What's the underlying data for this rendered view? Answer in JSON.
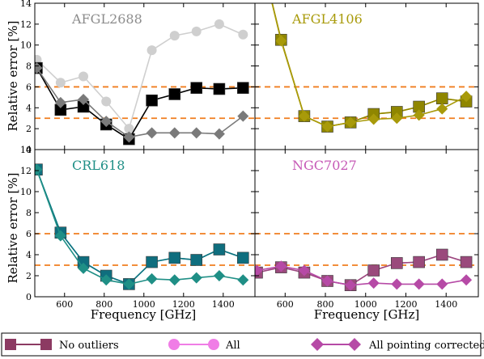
{
  "chart_data": {
    "type": "line",
    "xlabel": "Frequency [GHz]",
    "ylabel": "Relative error [%]",
    "xlim": [
      450,
      1560
    ],
    "ylim": [
      0,
      14
    ],
    "xticks": [
      600,
      800,
      1000,
      1200,
      1400
    ],
    "yticks": [
      0,
      2,
      4,
      6,
      8,
      10,
      12,
      14
    ],
    "hlines": [
      3,
      6
    ],
    "hline_color": "#f07d1e",
    "legend": {
      "placement": "bottom",
      "entries": [
        {
          "label": "No outliers"
        },
        {
          "label": "All"
        },
        {
          "label": "All pointing corrected"
        }
      ]
    },
    "panels": [
      {
        "title": "AFGL2688",
        "title_color": "#8c8c8c",
        "segments_break_between": [
          920,
          1040
        ],
        "series": [
          {
            "legend_index": 1,
            "marker": "circle",
            "color": "#cfcfcf",
            "x": [
              460,
              580,
              695,
              810,
              925,
              1040,
              1155,
              1265,
              1380,
              1500
            ],
            "y": [
              8.6,
              6.4,
              7.0,
              4.6,
              2.0,
              9.5,
              10.9,
              11.3,
              12.0,
              11.0
            ]
          },
          {
            "legend_index": 0,
            "marker": "square",
            "color": "#000000",
            "x": [
              460,
              580,
              695,
              810,
              925,
              1040,
              1155,
              1265,
              1380,
              1500
            ],
            "y": [
              7.8,
              3.8,
              4.1,
              2.4,
              1.0,
              4.7,
              5.3,
              5.9,
              5.8,
              5.9
            ]
          },
          {
            "legend_index": 2,
            "marker": "diamond",
            "color": "#7a7a7a",
            "x": [
              460,
              580,
              695,
              810,
              925,
              1040,
              1155,
              1265,
              1380,
              1500
            ],
            "y": [
              7.8,
              4.5,
              4.8,
              2.7,
              1.2,
              1.6,
              1.6,
              1.6,
              1.5,
              3.2
            ]
          }
        ]
      },
      {
        "title": "AFGL4106",
        "title_color": "#a89a0a",
        "segments_break_between": null,
        "series": [
          {
            "legend_index": 1,
            "marker": "circle",
            "color": "#f0c419",
            "x": [
              460,
              580,
              695,
              810,
              925,
              1040,
              1155,
              1265,
              1380,
              1500
            ],
            "y": [
              20.0,
              10.5,
              3.2,
              2.2,
              2.6,
              3.4,
              3.6,
              4.1,
              4.9,
              4.6
            ]
          },
          {
            "legend_index": 0,
            "marker": "square",
            "color": "#8f8600",
            "x": [
              460,
              580,
              695,
              810,
              925,
              1040,
              1155,
              1265,
              1380,
              1500
            ],
            "y": [
              20.0,
              10.5,
              3.2,
              2.2,
              2.6,
              3.4,
              3.6,
              4.1,
              4.9,
              4.6
            ]
          },
          {
            "legend_index": 2,
            "marker": "diamond",
            "color": "#a89a0a",
            "x": [
              460,
              580,
              695,
              810,
              925,
              1040,
              1155,
              1265,
              1380,
              1500
            ],
            "y": [
              20.0,
              10.4,
              3.2,
              2.2,
              2.6,
              2.9,
              3.0,
              3.3,
              3.9,
              5.1
            ]
          }
        ]
      },
      {
        "title": "CRL618",
        "title_color": "#1f8f86",
        "segments_break_between": [
          920,
          1040
        ],
        "series": [
          {
            "legend_index": 1,
            "marker": "circle",
            "color": "#2ee0c6",
            "x": [
              460,
              580,
              695,
              810,
              925,
              1040,
              1155,
              1265,
              1380,
              1500
            ],
            "y": [
              12.1,
              6.1,
              3.3,
              2.0,
              1.2,
              3.3,
              3.7,
              3.5,
              4.5,
              3.7
            ]
          },
          {
            "legend_index": 0,
            "marker": "square",
            "color": "#0f6e7e",
            "x": [
              460,
              580,
              695,
              810,
              925,
              1040,
              1155,
              1265,
              1380,
              1500
            ],
            "y": [
              12.1,
              6.1,
              3.3,
              2.0,
              1.2,
              3.3,
              3.7,
              3.5,
              4.5,
              3.7
            ]
          },
          {
            "legend_index": 2,
            "marker": "diamond",
            "color": "#1f8f86",
            "x": [
              460,
              580,
              695,
              810,
              925,
              1040,
              1155,
              1265,
              1380,
              1500
            ],
            "y": [
              12.1,
              5.8,
              2.7,
              1.6,
              1.2,
              1.7,
              1.6,
              1.8,
              2.0,
              1.6
            ]
          }
        ]
      },
      {
        "title": "NGC7027",
        "title_color": "#c659b6",
        "segments_break_between": [
          920,
          1040
        ],
        "series": [
          {
            "legend_index": 1,
            "marker": "circle",
            "color": "#f07de6",
            "x": [
              460,
              580,
              695,
              810,
              925,
              1040,
              1155,
              1265,
              1380,
              1500
            ],
            "y": [
              2.3,
              2.8,
              2.3,
              1.5,
              1.1,
              2.5,
              3.2,
              3.3,
              4.0,
              3.3
            ]
          },
          {
            "legend_index": 0,
            "marker": "square",
            "color": "#9a4a7c",
            "x": [
              460,
              580,
              695,
              810,
              925,
              1040,
              1155,
              1265,
              1380,
              1500
            ],
            "y": [
              2.3,
              2.8,
              2.3,
              1.5,
              1.1,
              2.5,
              3.2,
              3.3,
              4.0,
              3.3
            ]
          },
          {
            "legend_index": 2,
            "marker": "diamond",
            "color": "#b64aa6",
            "x": [
              460,
              580,
              695,
              810,
              925,
              1040,
              1155,
              1265,
              1380,
              1500
            ],
            "y": [
              2.5,
              2.9,
              2.5,
              1.5,
              1.1,
              1.3,
              1.2,
              1.2,
              1.2,
              1.6
            ]
          }
        ]
      }
    ],
    "legend_colors": {
      "no_outliers_line": "#8c3a62",
      "no_outliers_marker": "#8c3a62",
      "all_line": "#f07de6",
      "all_marker": "#f07de6",
      "pointing_line": "#b64aa6",
      "pointing_marker": "#b64aa6"
    }
  }
}
